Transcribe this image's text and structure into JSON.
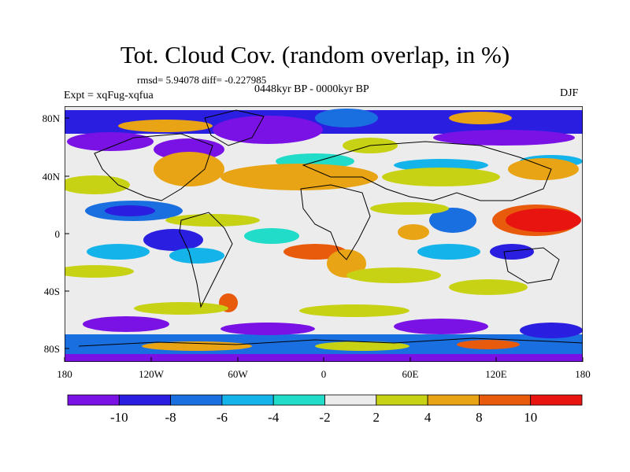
{
  "header": {
    "title": "Tot. Cloud Cov. (random overlap, in %)",
    "stats": "rmsd= 5.94078 diff= -0.227985",
    "period": "0448kyr BP - 0000kyr BP",
    "experiment": "Expt = xqFug-xqfua",
    "season": "DJF"
  },
  "axes": {
    "y_ticks": [
      "80N",
      "40N",
      "0",
      "40S",
      "80S"
    ],
    "x_ticks": [
      "180",
      "120W",
      "60W",
      "0",
      "60E",
      "120E",
      "180"
    ]
  },
  "colorbar": {
    "labels": [
      "-10",
      "-8",
      "-6",
      "-4",
      "-2",
      "2",
      "4",
      "8",
      "10"
    ],
    "colors": [
      "#7a12e6",
      "#2a1fe0",
      "#1a6fe0",
      "#14b4ea",
      "#20dcc8",
      "#ececec",
      "#c8d214",
      "#e8a414",
      "#e85a0c",
      "#e81410"
    ]
  },
  "map": {
    "background": "#ececec",
    "coastline_color": "#000000"
  }
}
